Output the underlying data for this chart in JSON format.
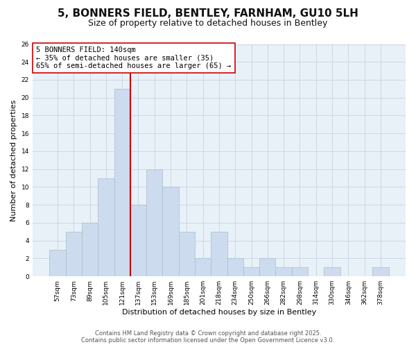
{
  "title": "5, BONNERS FIELD, BENTLEY, FARNHAM, GU10 5LH",
  "subtitle": "Size of property relative to detached houses in Bentley",
  "xlabel": "Distribution of detached houses by size in Bentley",
  "ylabel": "Number of detached properties",
  "bar_color": "#ccdcee",
  "bar_edgecolor": "#aabcce",
  "bin_labels": [
    "57sqm",
    "73sqm",
    "89sqm",
    "105sqm",
    "121sqm",
    "137sqm",
    "153sqm",
    "169sqm",
    "185sqm",
    "201sqm",
    "218sqm",
    "234sqm",
    "250sqm",
    "266sqm",
    "282sqm",
    "298sqm",
    "314sqm",
    "330sqm",
    "346sqm",
    "362sqm",
    "378sqm"
  ],
  "bar_heights": [
    3,
    5,
    6,
    11,
    21,
    8,
    12,
    10,
    5,
    2,
    5,
    2,
    1,
    2,
    1,
    1,
    0,
    1,
    0,
    0,
    1
  ],
  "vline_bin_index": 5,
  "vline_color": "#cc0000",
  "annotation_title": "5 BONNERS FIELD: 140sqm",
  "annotation_line1": "← 35% of detached houses are smaller (35)",
  "annotation_line2": "65% of semi-detached houses are larger (65) →",
  "ylim": [
    0,
    26
  ],
  "yticks": [
    0,
    2,
    4,
    6,
    8,
    10,
    12,
    14,
    16,
    18,
    20,
    22,
    24,
    26
  ],
  "background_color": "#ffffff",
  "plot_bg_color": "#e8f0f8",
  "grid_color": "#c8d4e0",
  "footer_line1": "Contains HM Land Registry data © Crown copyright and database right 2025.",
  "footer_line2": "Contains public sector information licensed under the Open Government Licence v3.0.",
  "title_fontsize": 11,
  "subtitle_fontsize": 9,
  "axis_label_fontsize": 8,
  "tick_fontsize": 6.5,
  "annotation_fontsize": 7.5,
  "footer_fontsize": 6
}
